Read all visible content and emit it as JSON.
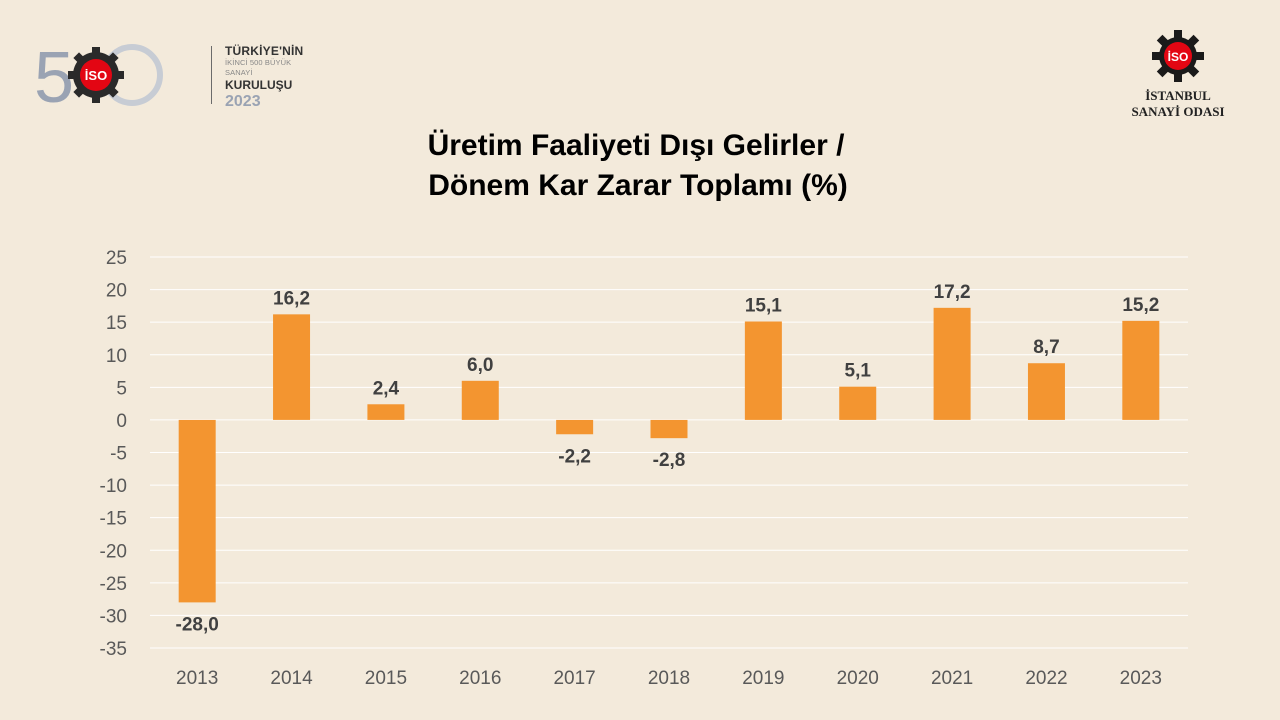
{
  "header": {
    "logo_left": {
      "line1": "TÜRKİYE'NİN",
      "line2": "İKİNCİ 500 BÜYÜK SANAYİ",
      "line3": "KURULUŞU",
      "year": "2023",
      "badge": "İSO"
    },
    "logo_right": {
      "badge": "İSO",
      "org_line1": "İSTANBUL",
      "org_line2": "SANAYİ ODASI"
    }
  },
  "chart_data": {
    "type": "bar",
    "title_line1": "Üretim Faaliyeti Dışı Gelirler /",
    "title_line2": "Dönem Kar Zarar Toplamı  (%)",
    "categories": [
      "2013",
      "2014",
      "2015",
      "2016",
      "2017",
      "2018",
      "2019",
      "2020",
      "2021",
      "2022",
      "2023"
    ],
    "values": [
      -28.0,
      16.2,
      2.4,
      6.0,
      -2.2,
      -2.8,
      15.1,
      5.1,
      17.2,
      8.7,
      15.2
    ],
    "data_labels": [
      "-28,0",
      "16,2",
      "2,4",
      "6,0",
      "-2,2",
      "-2,8",
      "15,1",
      "5,1",
      "17,2",
      "8,7",
      "15,2"
    ],
    "yticks": [
      25,
      20,
      15,
      10,
      5,
      0,
      -5,
      -10,
      -15,
      -20,
      -25,
      -30,
      -35
    ],
    "ylim": [
      -35,
      25
    ],
    "grid": true,
    "bar_color": "#f39530",
    "xlabel": "",
    "ylabel": ""
  },
  "colors": {
    "background": "#f3eadb",
    "accent_red": "#e30613",
    "gear": "#1a1a1a"
  }
}
